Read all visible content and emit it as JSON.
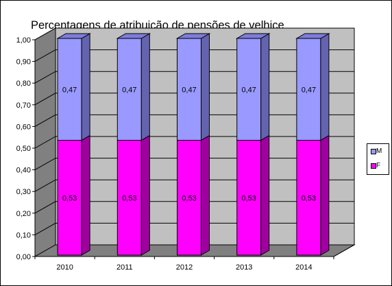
{
  "chart_data": {
    "type": "bar",
    "stacked": true,
    "three_d": true,
    "title": "Percentagens de atribuição de pensões de velhice",
    "categories": [
      "2010",
      "2011",
      "2012",
      "2013",
      "2014"
    ],
    "series": [
      {
        "name": "F",
        "values": [
          0.53,
          0.53,
          0.53,
          0.53,
          0.53
        ],
        "labels": [
          "0,53",
          "0,53",
          "0,53",
          "0,53",
          "0,53"
        ],
        "color": "#ff00ff",
        "side_color": "#a000a0",
        "top_color": "#d400d4"
      },
      {
        "name": "M",
        "values": [
          0.47,
          0.47,
          0.47,
          0.47,
          0.47
        ],
        "labels": [
          "0,47",
          "0,47",
          "0,47",
          "0,47",
          "0,47"
        ],
        "color": "#9999ff",
        "side_color": "#6363b0",
        "top_color": "#7d7dd8"
      }
    ],
    "yticks": [
      "0,00",
      "0,10",
      "0,20",
      "0,30",
      "0,40",
      "0,50",
      "0,60",
      "0,70",
      "0,80",
      "0,90",
      "1,00"
    ],
    "ylim": [
      0,
      1
    ],
    "grid": true,
    "legend": "right",
    "wall_color": "#c0c0c0",
    "floor_color": "#808080"
  }
}
